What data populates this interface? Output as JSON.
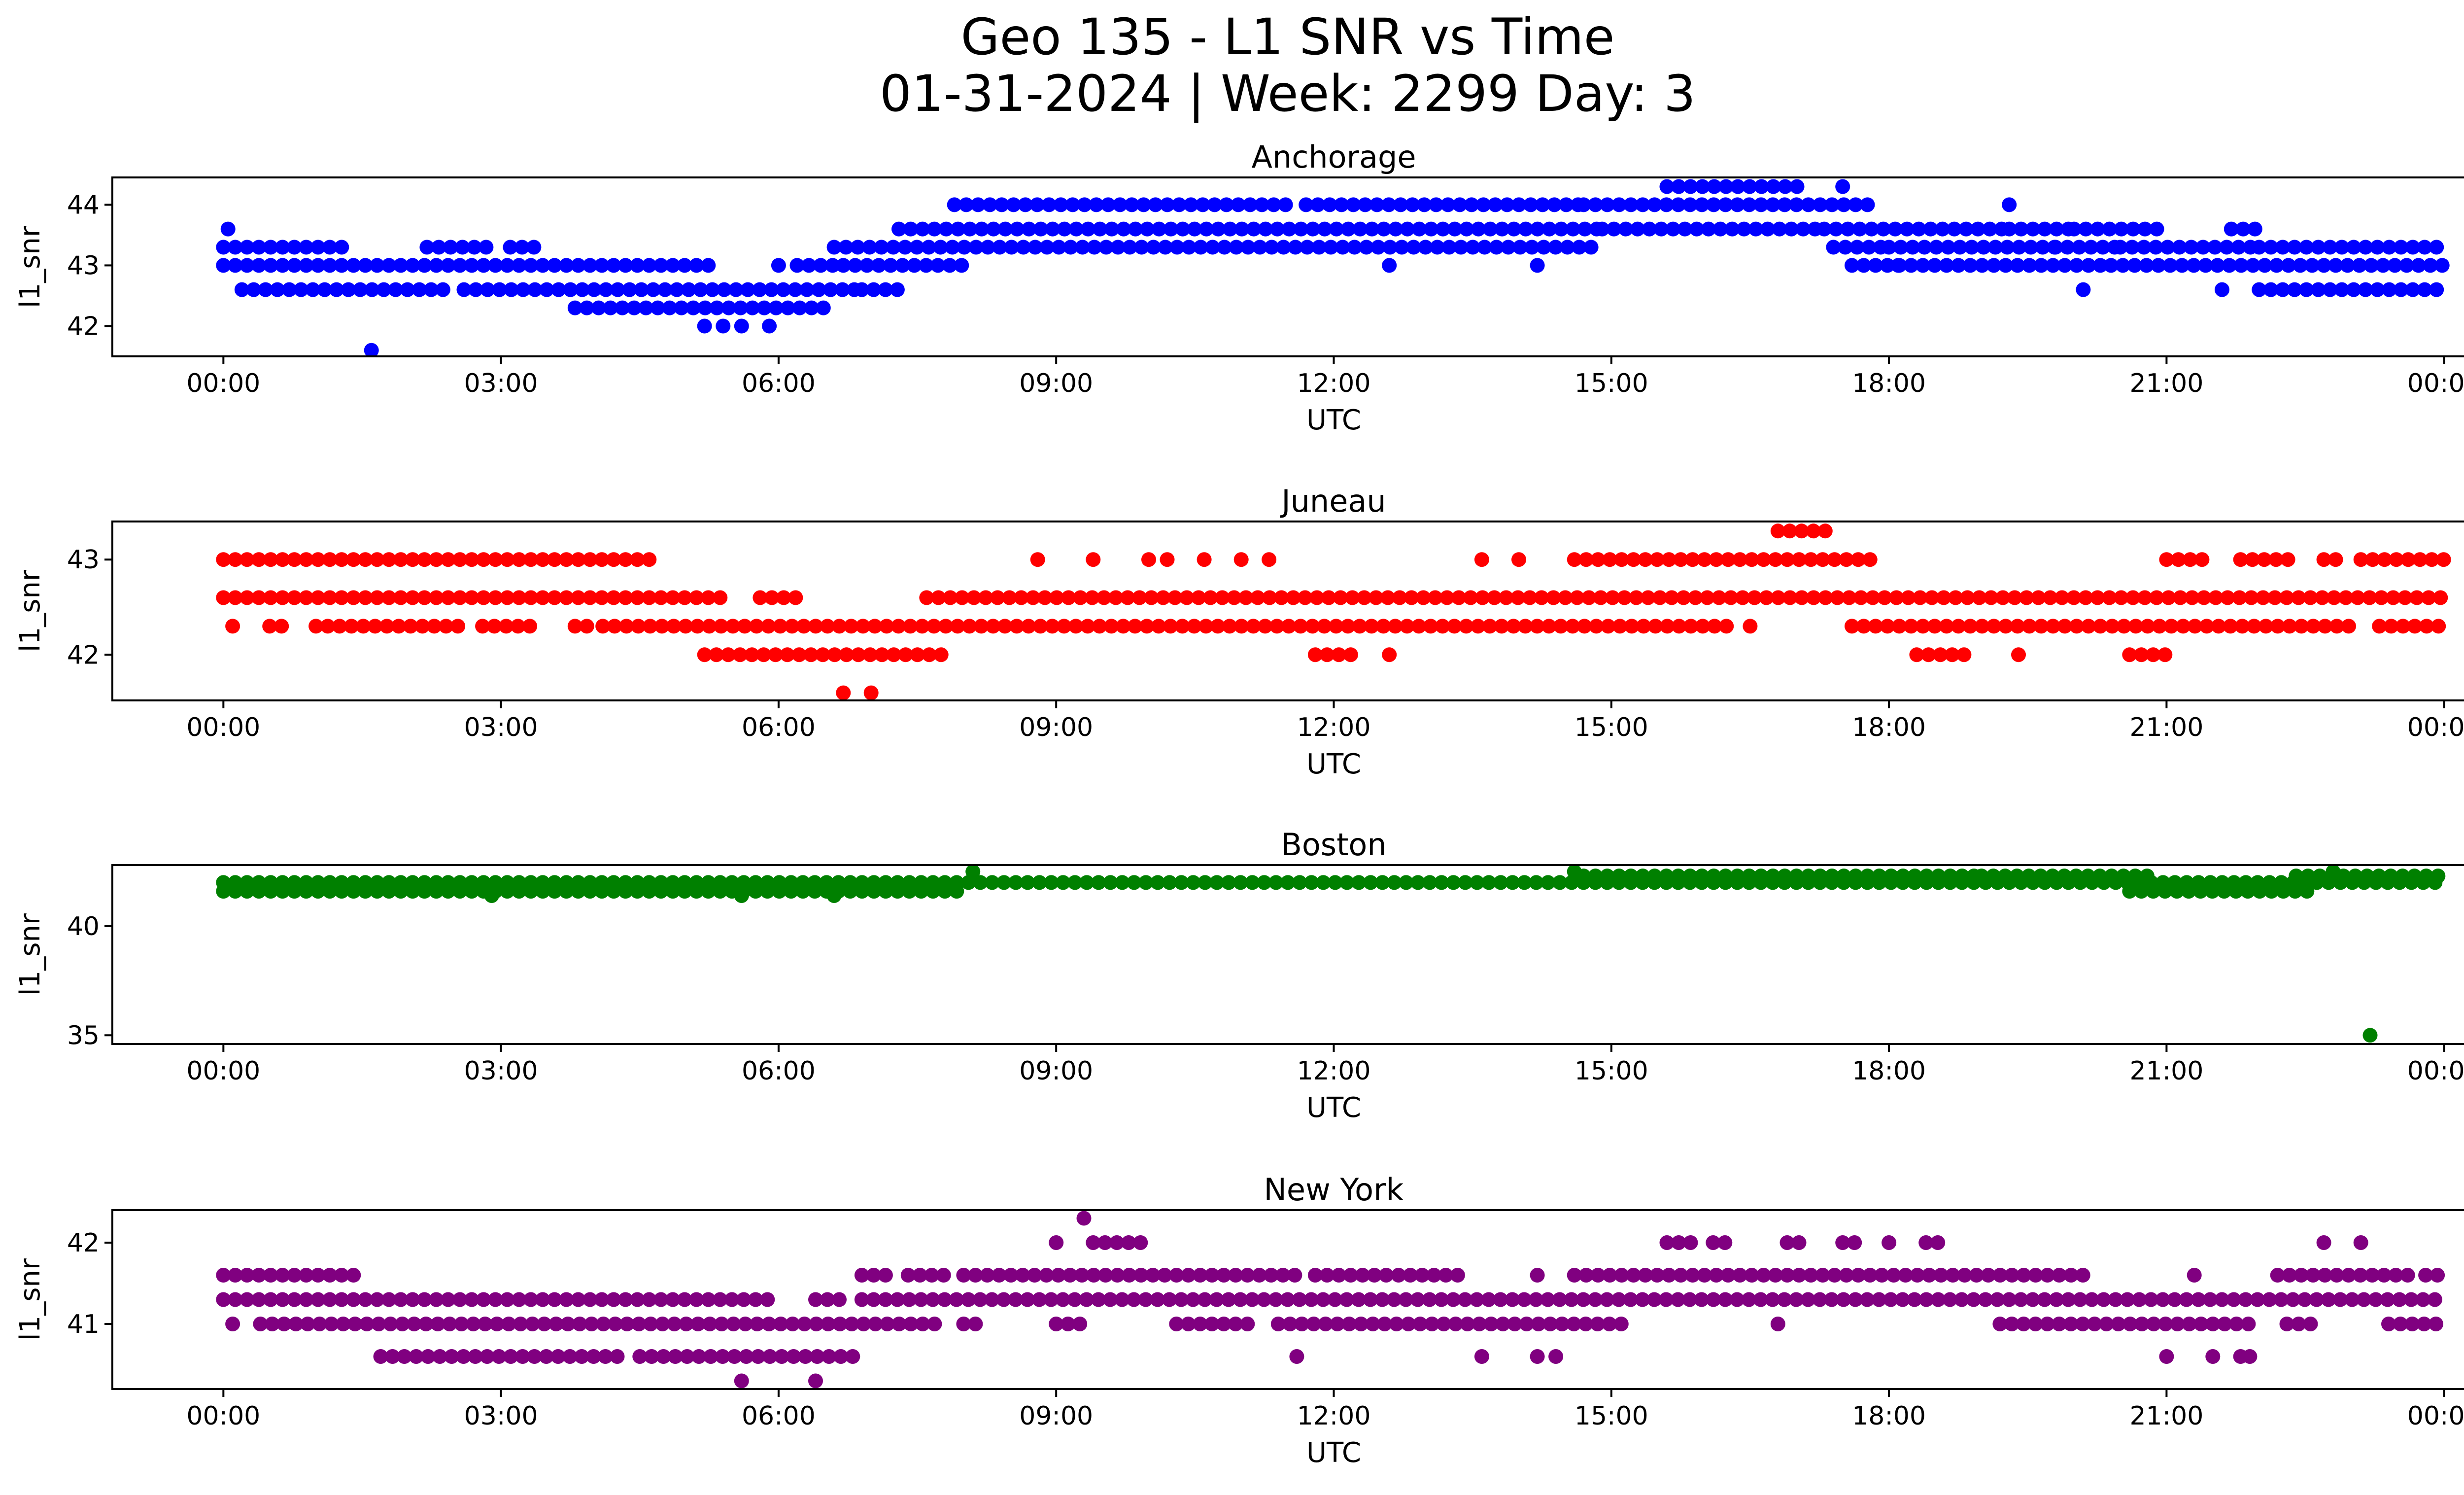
{
  "figure": {
    "title_line1": "Geo 135 - L1 SNR vs Time",
    "title_line2": "01-31-2024 | Week: 2299 Day: 3"
  },
  "chart_data": [
    {
      "type": "scatter",
      "title": "Anchorage",
      "xlabel": "UTC",
      "ylabel": "l1_snr",
      "color": "#0000ff",
      "x_ticks": [
        "00:00",
        "03:00",
        "06:00",
        "09:00",
        "12:00",
        "15:00",
        "18:00",
        "21:00",
        "00:00"
      ],
      "y_ticks": [
        42,
        43,
        44
      ],
      "xlim_hours": [
        -1.2,
        25.2
      ],
      "ylim": [
        41.5,
        44.45
      ],
      "bands": [
        {
          "y": 43.3,
          "ranges": [
            [
              0.0,
              1.3
            ],
            [
              2.2,
              2.9
            ],
            [
              3.1,
              3.4
            ],
            [
              6.6,
              14.8
            ],
            [
              17.4,
              18.0
            ],
            [
              18.0,
              19.8
            ],
            [
              19.8,
              20.5
            ],
            [
              20.5,
              22.0
            ],
            [
              22.0,
              24.0
            ]
          ]
        },
        {
          "y": 43.0,
          "ranges": [
            [
              0.0,
              5.3
            ],
            [
              6.2,
              6.7
            ],
            [
              6.7,
              8.0
            ],
            [
              17.6,
              20.4
            ],
            [
              20.4,
              24.0
            ]
          ]
        },
        {
          "y": 42.6,
          "ranges": [
            [
              0.2,
              2.5
            ],
            [
              2.6,
              6.9
            ],
            [
              6.9,
              7.3
            ],
            [
              22.0,
              24.0
            ]
          ]
        },
        {
          "y": 42.3,
          "ranges": [
            [
              3.8,
              6.5
            ]
          ]
        },
        {
          "y": 43.6,
          "ranges": [
            [
              7.3,
              14.9
            ],
            [
              14.9,
              17.3
            ],
            [
              17.3,
              19.3
            ],
            [
              19.3,
              20.0
            ],
            [
              20.0,
              21.0
            ],
            [
              21.7,
              22.0
            ]
          ]
        },
        {
          "y": 44.0,
          "ranges": [
            [
              7.9,
              11.5
            ],
            [
              11.7,
              14.7
            ],
            [
              14.7,
              17.8
            ]
          ]
        },
        {
          "y": 44.3,
          "ranges": [
            [
              15.6,
              17.1
            ]
          ]
        }
      ],
      "points": [
        [
          0.05,
          43.6
        ],
        [
          1.6,
          41.6
        ],
        [
          5.2,
          42.0
        ],
        [
          5.4,
          42.0
        ],
        [
          5.6,
          42.0
        ],
        [
          5.9,
          42.0
        ],
        [
          6.0,
          43.0
        ],
        [
          12.6,
          43.0
        ],
        [
          14.2,
          43.0
        ],
        [
          17.5,
          44.3
        ],
        [
          20.1,
          42.6
        ],
        [
          21.6,
          42.6
        ],
        [
          19.3,
          44.0
        ],
        [
          18.1,
          43.0
        ]
      ]
    },
    {
      "type": "scatter",
      "title": "Juneau",
      "xlabel": "UTC",
      "ylabel": "l1_snr",
      "color": "#ff0000",
      "x_ticks": [
        "00:00",
        "03:00",
        "06:00",
        "09:00",
        "12:00",
        "15:00",
        "18:00",
        "21:00",
        "00:00"
      ],
      "y_ticks": [
        42,
        43
      ],
      "xlim_hours": [
        -1.2,
        25.2
      ],
      "ylim": [
        41.52,
        43.4
      ],
      "bands": [
        {
          "y": 42.6,
          "ranges": [
            [
              0.0,
              5.4
            ],
            [
              5.8,
              6.2
            ],
            [
              7.6,
              24.0
            ]
          ]
        },
        {
          "y": 42.3,
          "ranges": [
            [
              0.1,
              0.2
            ],
            [
              0.5,
              0.7
            ],
            [
              1.0,
              2.6
            ],
            [
              2.8,
              3.4
            ],
            [
              3.8,
              4.0
            ],
            [
              4.1,
              16.3
            ],
            [
              16.5,
              16.6
            ],
            [
              17.6,
              23.0
            ],
            [
              23.3,
              24.0
            ]
          ]
        },
        {
          "y": 43.0,
          "ranges": [
            [
              0.0,
              4.7
            ],
            [
              13.6,
              13.7
            ],
            [
              14.6,
              17.9
            ],
            [
              21.0,
              21.4
            ],
            [
              21.8,
              22.4
            ],
            [
              22.7,
              22.9
            ],
            [
              23.1,
              24.0
            ]
          ]
        },
        {
          "y": 42.0,
          "ranges": [
            [
              5.2,
              7.8
            ],
            [
              11.8,
              12.3
            ],
            [
              18.3,
              18.9
            ],
            [
              20.6,
              21.1
            ]
          ]
        },
        {
          "y": 43.3,
          "ranges": [
            [
              16.8,
              17.4
            ]
          ]
        }
      ],
      "points": [
        [
          6.7,
          41.6
        ],
        [
          7.0,
          41.6
        ],
        [
          8.8,
          43.0
        ],
        [
          9.4,
          43.0
        ],
        [
          10.0,
          43.0
        ],
        [
          10.2,
          43.0
        ],
        [
          10.6,
          43.0
        ],
        [
          11.0,
          43.0
        ],
        [
          11.3,
          43.0
        ],
        [
          14.0,
          43.0
        ],
        [
          12.6,
          42.0
        ],
        [
          19.4,
          42.0
        ]
      ]
    },
    {
      "type": "scatter",
      "title": "Boston",
      "xlabel": "UTC",
      "ylabel": "l1_snr",
      "color": "#008000",
      "x_ticks": [
        "00:00",
        "03:00",
        "06:00",
        "09:00",
        "12:00",
        "15:00",
        "18:00",
        "21:00",
        "00:00"
      ],
      "y_ticks": [
        35,
        40
      ],
      "xlim_hours": [
        -1.2,
        25.2
      ],
      "ylim": [
        34.6,
        42.8
      ],
      "bands": [
        {
          "y": 42.0,
          "ranges": [
            [
              0.0,
              24.0
            ]
          ]
        },
        {
          "y": 41.6,
          "ranges": [
            [
              0.0,
              8.0
            ],
            [
              20.6,
              22.6
            ]
          ]
        },
        {
          "y": 42.3,
          "ranges": [
            [
              14.7,
              19.0
            ],
            [
              19.0,
              20.8
            ],
            [
              22.4,
              24.0
            ]
          ]
        }
      ],
      "points": [
        [
          23.2,
          35.0
        ],
        [
          8.1,
          42.5
        ],
        [
          14.6,
          42.5
        ],
        [
          22.8,
          42.5
        ],
        [
          2.9,
          41.4
        ],
        [
          5.6,
          41.4
        ],
        [
          6.6,
          41.4
        ]
      ]
    },
    {
      "type": "scatter",
      "title": "New York",
      "xlabel": "UTC",
      "ylabel": "l1_snr",
      "color": "#800080",
      "x_ticks": [
        "00:00",
        "03:00",
        "06:00",
        "09:00",
        "12:00",
        "15:00",
        "18:00",
        "21:00",
        "00:00"
      ],
      "y_ticks": [
        41,
        42
      ],
      "xlim_hours": [
        -1.2,
        25.2
      ],
      "ylim": [
        40.2,
        42.4
      ],
      "bands": [
        {
          "y": 41.3,
          "ranges": [
            [
              0.0,
              6.0
            ],
            [
              6.4,
              6.7
            ],
            [
              6.9,
              24.0
            ]
          ]
        },
        {
          "y": 41.0,
          "ranges": [
            [
              0.1,
              0.2
            ],
            [
              0.4,
              7.7
            ],
            [
              8.0,
              8.2
            ],
            [
              9.0,
              9.3
            ],
            [
              10.3,
              11.1
            ],
            [
              11.4,
              15.2
            ],
            [
              19.2,
              22.0
            ],
            [
              22.3,
              22.6
            ],
            [
              23.4,
              24.0
            ]
          ]
        },
        {
          "y": 41.6,
          "ranges": [
            [
              0.0,
              1.5
            ],
            [
              6.9,
              7.2
            ],
            [
              7.4,
              7.9
            ],
            [
              8.0,
              11.7
            ],
            [
              11.8,
              12.6
            ],
            [
              12.7,
              13.4
            ],
            [
              14.2,
              14.3
            ],
            [
              14.6,
              20.2
            ],
            [
              22.2,
              23.7
            ],
            [
              23.8,
              24.0
            ]
          ]
        },
        {
          "y": 40.6,
          "ranges": [
            [
              1.7,
              4.3
            ],
            [
              4.5,
              6.9
            ]
          ]
        },
        {
          "y": 42.0,
          "ranges": [
            [
              15.6,
              15.9
            ],
            [
              16.1,
              16.3
            ],
            [
              16.9,
              17.1
            ],
            [
              17.5,
              17.7
            ],
            [
              18.4,
              18.6
            ],
            [
              9.4,
              10.0
            ]
          ]
        }
      ],
      "points": [
        [
          5.6,
          40.3
        ],
        [
          6.4,
          40.3
        ],
        [
          9.3,
          42.3
        ],
        [
          9.0,
          42.0
        ],
        [
          11.6,
          40.6
        ],
        [
          13.6,
          40.6
        ],
        [
          14.2,
          40.6
        ],
        [
          14.4,
          40.6
        ],
        [
          16.8,
          41.0
        ],
        [
          18.0,
          42.0
        ],
        [
          21.3,
          41.6
        ],
        [
          22.7,
          42.0
        ],
        [
          23.1,
          42.0
        ],
        [
          21.0,
          40.6
        ],
        [
          21.5,
          40.6
        ],
        [
          21.8,
          40.6
        ],
        [
          21.9,
          40.6
        ]
      ]
    }
  ]
}
